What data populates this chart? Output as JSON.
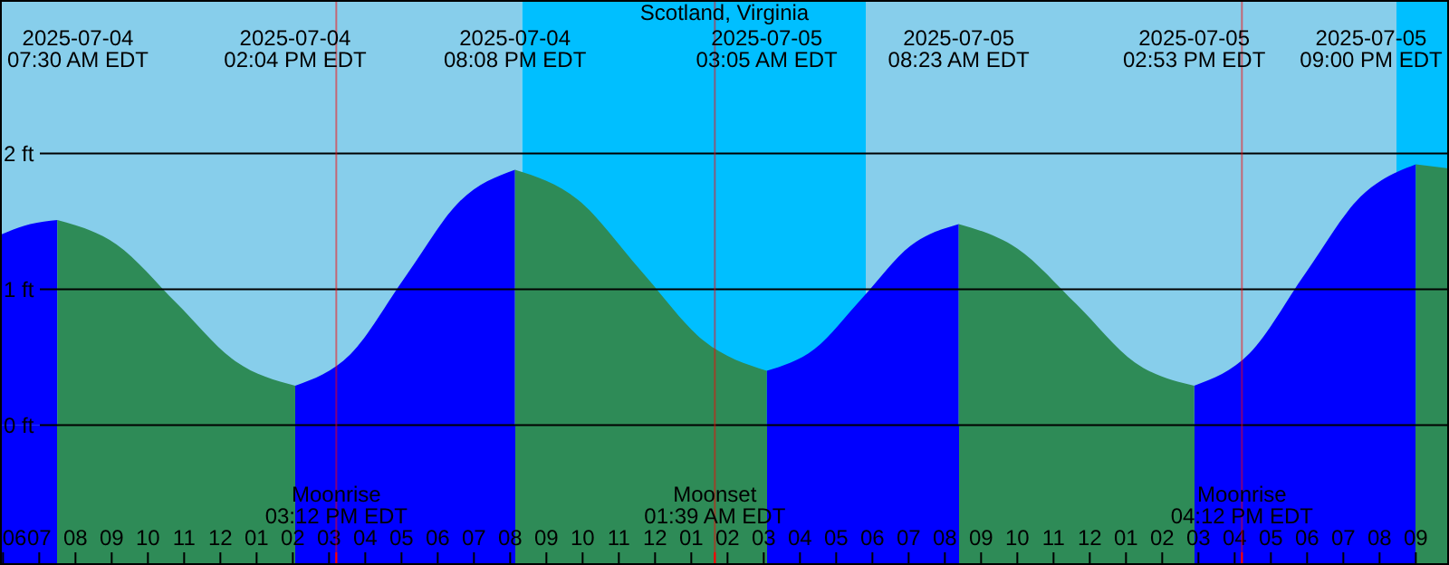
{
  "chart_data": {
    "type": "area",
    "title": "Scotland, Virginia",
    "xlim": [
      "2025-07-04T05:55",
      "2025-07-05T21:55"
    ],
    "xticks": [
      {
        "value": "2025-07-04T06:00",
        "label": "06"
      },
      {
        "value": "2025-07-04T07:00",
        "label": "07"
      },
      {
        "value": "2025-07-04T08:00",
        "label": "08"
      },
      {
        "value": "2025-07-04T09:00",
        "label": "09"
      },
      {
        "value": "2025-07-04T10:00",
        "label": "10"
      },
      {
        "value": "2025-07-04T11:00",
        "label": "11"
      },
      {
        "value": "2025-07-04T12:00",
        "label": "12"
      },
      {
        "value": "2025-07-04T13:00",
        "label": "01"
      },
      {
        "value": "2025-07-04T14:00",
        "label": "02"
      },
      {
        "value": "2025-07-04T15:00",
        "label": "03"
      },
      {
        "value": "2025-07-04T16:00",
        "label": "04"
      },
      {
        "value": "2025-07-04T17:00",
        "label": "05"
      },
      {
        "value": "2025-07-04T18:00",
        "label": "06"
      },
      {
        "value": "2025-07-04T19:00",
        "label": "07"
      },
      {
        "value": "2025-07-04T20:00",
        "label": "08"
      },
      {
        "value": "2025-07-04T21:00",
        "label": "09"
      },
      {
        "value": "2025-07-04T22:00",
        "label": "10"
      },
      {
        "value": "2025-07-04T23:00",
        "label": "11"
      },
      {
        "value": "2025-07-05T00:00",
        "label": "12"
      },
      {
        "value": "2025-07-05T01:00",
        "label": "01"
      },
      {
        "value": "2025-07-05T02:00",
        "label": "02"
      },
      {
        "value": "2025-07-05T03:00",
        "label": "03"
      },
      {
        "value": "2025-07-05T04:00",
        "label": "04"
      },
      {
        "value": "2025-07-05T05:00",
        "label": "05"
      },
      {
        "value": "2025-07-05T06:00",
        "label": "06"
      },
      {
        "value": "2025-07-05T07:00",
        "label": "07"
      },
      {
        "value": "2025-07-05T08:00",
        "label": "08"
      },
      {
        "value": "2025-07-05T09:00",
        "label": "09"
      },
      {
        "value": "2025-07-05T10:00",
        "label": "10"
      },
      {
        "value": "2025-07-05T11:00",
        "label": "11"
      },
      {
        "value": "2025-07-05T12:00",
        "label": "12"
      },
      {
        "value": "2025-07-05T13:00",
        "label": "01"
      },
      {
        "value": "2025-07-05T14:00",
        "label": "02"
      },
      {
        "value": "2025-07-05T15:00",
        "label": "03"
      },
      {
        "value": "2025-07-05T16:00",
        "label": "04"
      },
      {
        "value": "2025-07-05T17:00",
        "label": "05"
      },
      {
        "value": "2025-07-05T18:00",
        "label": "06"
      },
      {
        "value": "2025-07-05T19:00",
        "label": "07"
      },
      {
        "value": "2025-07-05T20:00",
        "label": "08"
      },
      {
        "value": "2025-07-05T21:00",
        "label": "09"
      }
    ],
    "ylim": [
      -1.03,
      3.13
    ],
    "yticks": [
      {
        "value": 0,
        "label": "0 ft"
      },
      {
        "value": 1,
        "label": "1 ft"
      },
      {
        "value": 2,
        "label": "2 ft"
      }
    ],
    "grid": "y",
    "bands": [
      {
        "axis": "x",
        "from": "2025-07-04T05:55",
        "to": "2025-07-04T20:20",
        "color": "#87ceeb"
      },
      {
        "axis": "x",
        "from": "2025-07-04T20:20",
        "to": "2025-07-05T05:49",
        "color": "#00bfff"
      },
      {
        "axis": "x",
        "from": "2025-07-05T05:49",
        "to": "2025-07-05T20:28",
        "color": "#87ceeb"
      },
      {
        "axis": "x",
        "from": "2025-07-05T20:28",
        "to": "2025-07-05T21:55",
        "color": "#00bfff"
      }
    ],
    "ref_lines": [
      {
        "axis": "x",
        "value": "2025-07-04T15:12",
        "label": "Moonrise\n03:12 PM EDT",
        "color": "#ff0000"
      },
      {
        "axis": "x",
        "value": "2025-07-05T01:39",
        "label": "Moonset\n01:39 AM EDT",
        "color": "#ff0000"
      },
      {
        "axis": "x",
        "value": "2025-07-05T16:12",
        "label": "Moonrise\n04:12 PM EDT",
        "color": "#ff0000"
      }
    ],
    "series": [
      {
        "color": "#0000ff",
        "x": [
          "2025-07-04T05:55",
          "2025-07-04T06:45",
          "2025-07-04T07:30",
          "2025-07-04T10:47",
          "2025-07-04T14:04",
          "2025-07-04T15:35",
          "2025-07-04T17:06",
          "2025-07-04T18:37",
          "2025-07-04T20:08",
          "2025-07-04T23:36",
          "2025-07-05T03:05",
          "2025-07-05T04:24",
          "2025-07-05T05:44",
          "2025-07-05T07:03",
          "2025-07-05T08:23",
          "2025-07-05T11:38",
          "2025-07-05T14:53",
          "2025-07-05T16:25",
          "2025-07-05T17:56",
          "2025-07-05T19:28",
          "2025-07-05T21:00"
        ],
        "values": [
          1.4,
          1.48,
          1.51,
          null,
          0.29,
          0.52,
          1.09,
          1.65,
          1.88,
          null,
          0.4,
          0.56,
          0.94,
          1.32,
          1.48,
          null,
          0.29,
          0.53,
          1.11,
          1.68,
          1.92
        ]
      },
      {
        "color": "#2e8b57",
        "x": [
          "2025-07-04T07:30",
          "2025-07-04T09:08",
          "2025-07-04T10:47",
          "2025-07-04T12:25",
          "2025-07-04T14:04",
          "2025-07-04T17:06",
          "2025-07-04T20:08",
          "2025-07-04T21:52",
          "2025-07-04T23:36",
          "2025-07-05T01:21",
          "2025-07-05T03:05",
          "2025-07-05T05:44",
          "2025-07-05T08:23",
          "2025-07-05T10:00",
          "2025-07-05T11:38",
          "2025-07-05T13:15",
          "2025-07-05T14:53",
          "2025-07-05T17:56",
          "2025-07-05T21:00",
          "2025-07-05T21:55"
        ],
        "values": [
          1.51,
          1.33,
          0.9,
          0.47,
          0.29,
          null,
          1.88,
          1.66,
          1.14,
          0.62,
          0.4,
          null,
          1.48,
          1.3,
          0.89,
          0.46,
          0.29,
          null,
          1.92,
          1.89
        ]
      }
    ],
    "annotations": [
      "2025-07-04\n07:30 AM EDT",
      "2025-07-04\n02:04 PM EDT",
      "2025-07-04\n08:08 PM EDT",
      "2025-07-05\n03:05 AM EDT",
      "2025-07-05\n08:23 AM EDT",
      "2025-07-05\n02:53 PM EDT",
      "2025-07-05\n09:00 PM EDT"
    ]
  }
}
